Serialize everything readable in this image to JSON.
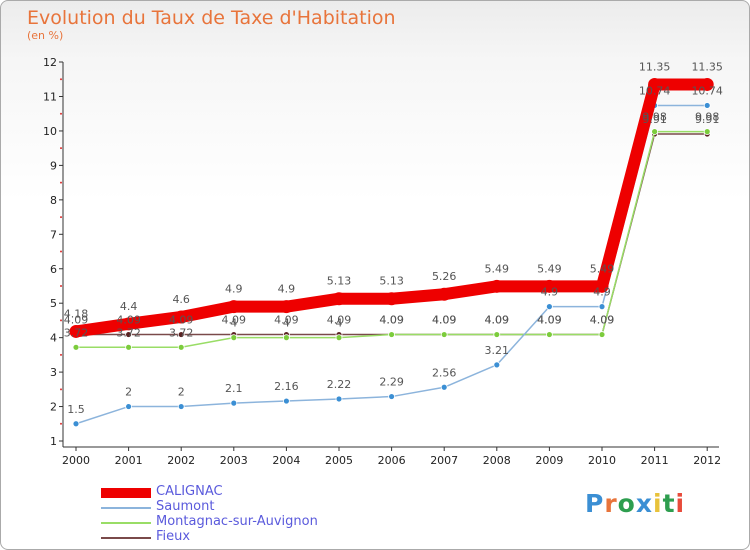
{
  "title": "Evolution du Taux de Taxe d'Habitation",
  "subtitle": "(en %)",
  "logo": {
    "text": "Proxiti",
    "letter_colors": [
      "#3b8fd4",
      "#e8743b",
      "#2e9e4f",
      "#3b8fd4",
      "#e8c23b",
      "#2e9e4f",
      "#e84b3b"
    ]
  },
  "chart_data": {
    "type": "line",
    "title": "Evolution du Taux de Taxe d'Habitation",
    "ylabel": "(en %)",
    "xlabel": "",
    "x": [
      "2000",
      "2001",
      "2002",
      "2003",
      "2004",
      "2005",
      "2006",
      "2007",
      "2008",
      "2009",
      "2010",
      "2011",
      "2012"
    ],
    "ylim": [
      1,
      12
    ],
    "yticks": [
      "1",
      "2",
      "3",
      "4",
      "5",
      "6",
      "7",
      "8",
      "9",
      "10",
      "11",
      "12"
    ],
    "grid": false,
    "legend_position": "bottom-left",
    "series": [
      {
        "name": "CALIGNAC",
        "color": "#ee0000",
        "marker": "#ee0000",
        "values": [
          4.18,
          4.4,
          4.6,
          4.9,
          4.9,
          5.13,
          5.13,
          5.26,
          5.49,
          5.49,
          5.49,
          11.35,
          11.35
        ],
        "labels": [
          "4.18",
          "4.4",
          "4.6",
          "4.9",
          "4.9",
          "5.13",
          "5.13",
          "5.26",
          "5.49",
          "5.49",
          "5.49",
          "11.35",
          "11.35"
        ]
      },
      {
        "name": "Saumont",
        "color": "#8cb4dc",
        "marker": "#3b8fd4",
        "values": [
          1.5,
          2,
          2,
          2.1,
          2.16,
          2.22,
          2.29,
          2.56,
          3.21,
          4.9,
          4.9,
          10.74,
          10.74
        ],
        "labels": [
          "1.5",
          "2",
          "2",
          "2.1",
          "2.16",
          "2.22",
          "2.29",
          "2.56",
          "3.21",
          "4.9",
          "4.9",
          "10.74",
          "10.74"
        ]
      },
      {
        "name": "Montagnac-sur-Auvignon",
        "color": "#99dd66",
        "marker": "#7ccc3c",
        "values": [
          3.72,
          3.72,
          3.72,
          4,
          4,
          4,
          4.09,
          4.09,
          4.09,
          4.09,
          4.09,
          9.98,
          9.98
        ],
        "labels": [
          "3.72",
          "3.72",
          "3.72",
          "4",
          "4",
          "4",
          "4.09",
          "4.09",
          "4.09",
          "4.09",
          "4.09",
          "9.98",
          "9.98"
        ]
      },
      {
        "name": "Fieux",
        "color": "#7a4a4a",
        "marker": "#5a2222",
        "values": [
          4.09,
          4.09,
          4.09,
          4.09,
          4.09,
          4.09,
          4.09,
          4.09,
          4.09,
          4.09,
          4.09,
          9.91,
          9.91
        ],
        "labels": [
          "4.09",
          "4.09",
          "4.09",
          "4.09",
          "4.09",
          "4.09",
          "4.09",
          "4.09",
          "4.09",
          "4.09",
          "4.09",
          "9.91",
          "9.91"
        ]
      }
    ]
  }
}
